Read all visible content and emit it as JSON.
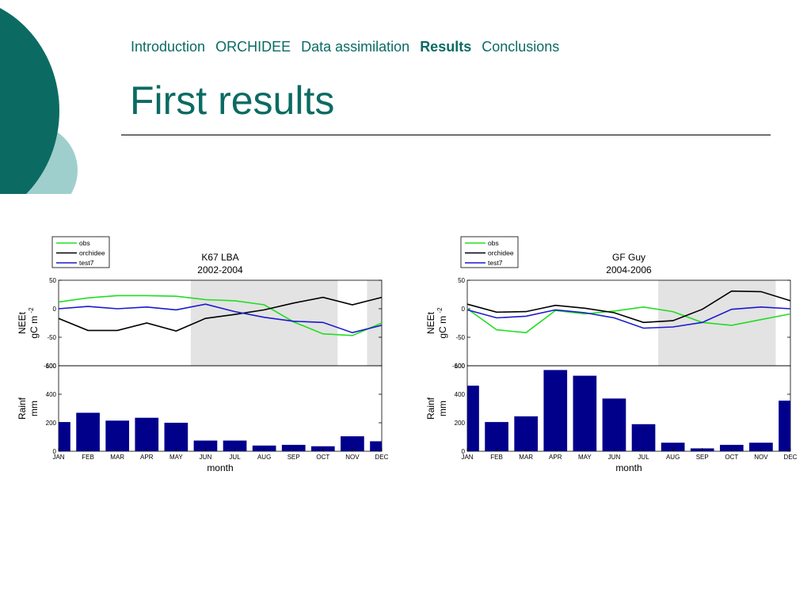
{
  "nav": {
    "items": [
      {
        "label": "Introduction",
        "active": false
      },
      {
        "label": "ORCHIDEE",
        "active": false
      },
      {
        "label": "Data assimilation",
        "active": false
      },
      {
        "label": "Results",
        "active": true
      },
      {
        "label": "Conclusions",
        "active": false
      }
    ]
  },
  "slide": {
    "title": "First results"
  },
  "colors": {
    "accent": "#0b6b63",
    "accent_light": "#9fcfcc",
    "obs": "#22dd22",
    "orchidee": "#000000",
    "test7": "#1a1acc",
    "bars": "#00008b",
    "shade": "#e3e3e3"
  },
  "chart_data": [
    {
      "type": "line",
      "title": "K67 LBA",
      "subtitle": "2002-2004",
      "legend": [
        "obs",
        "orchidee",
        "test7"
      ],
      "legend_position": "top-left",
      "ylabel": "NEEt",
      "ylabel2": "gC m",
      "ylabel_sup": "-2",
      "ylim": [
        -100,
        50
      ],
      "yticks": [
        50,
        0,
        -50,
        -100
      ],
      "categories": [
        "JAN",
        "FEB",
        "MAR",
        "APR",
        "MAY",
        "JUN",
        "JUL",
        "AUG",
        "SEP",
        "OCT",
        "NOV",
        "DEC"
      ],
      "shaded_month_ranges": [
        [
          5.5,
          10.5
        ],
        [
          11.5,
          12
        ]
      ],
      "series": [
        {
          "name": "obs",
          "values": [
            12,
            19,
            23,
            23,
            22,
            16,
            14,
            7,
            -23,
            -44,
            -47,
            -25
          ]
        },
        {
          "name": "orchidee",
          "values": [
            -17,
            -38,
            -38,
            -25,
            -39,
            -17,
            -10,
            -2,
            10,
            20,
            7,
            20
          ]
        },
        {
          "name": "test7",
          "values": [
            0,
            4,
            0,
            3,
            -2,
            8,
            -5,
            -15,
            -22,
            -24,
            -42,
            -29
          ]
        }
      ],
      "rain": {
        "ylabel": "Rainf",
        "ylabel2": "mm",
        "ylim": [
          0,
          600
        ],
        "yticks": [
          600,
          400,
          200,
          0
        ],
        "xlabel": "month",
        "values": [
          205,
          270,
          215,
          235,
          200,
          75,
          75,
          40,
          45,
          35,
          105,
          70
        ]
      }
    },
    {
      "type": "line",
      "title": "GF Guy",
      "subtitle": "2004-2006",
      "legend": [
        "obs",
        "orchidee",
        "test7"
      ],
      "legend_position": "top-left",
      "ylabel": "NEEt",
      "ylabel2": "gC m",
      "ylabel_sup": "-2",
      "ylim": [
        -100,
        50
      ],
      "yticks": [
        50,
        0,
        -50,
        -100
      ],
      "categories": [
        "JAN",
        "FEB",
        "MAR",
        "APR",
        "MAY",
        "JUN",
        "JUL",
        "AUG",
        "SEP",
        "OCT",
        "NOV",
        "DEC"
      ],
      "shaded_month_ranges": [
        [
          7.5,
          11.5
        ]
      ],
      "series": [
        {
          "name": "obs",
          "values": [
            0,
            -37,
            -42,
            -3,
            -9,
            -4,
            3,
            -5,
            -24,
            -29,
            -19,
            -9
          ]
        },
        {
          "name": "orchidee",
          "values": [
            8,
            -6,
            -5,
            6,
            1,
            -7,
            -24,
            -21,
            -1,
            31,
            30,
            14
          ]
        },
        {
          "name": "test7",
          "values": [
            -2,
            -16,
            -13,
            -2,
            -7,
            -16,
            -34,
            -32,
            -24,
            -1,
            3,
            0
          ]
        }
      ],
      "rain": {
        "ylabel": "Rainf",
        "ylabel2": "mm",
        "ylim": [
          0,
          600
        ],
        "yticks": [
          600,
          400,
          200,
          0
        ],
        "xlabel": "month",
        "values": [
          460,
          205,
          245,
          570,
          530,
          370,
          190,
          60,
          20,
          45,
          60,
          355
        ]
      }
    }
  ]
}
